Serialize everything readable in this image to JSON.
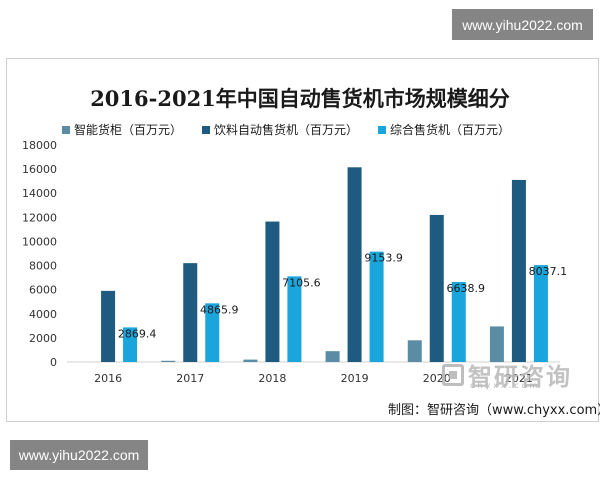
{
  "watermarks": {
    "top": "www.yihu2022.com",
    "bottom": "www.yihu2022.com"
  },
  "logo_watermark": {
    "name": "智研咨询",
    "url": "chyxx.com"
  },
  "source_note": "制图：智研咨询（www.chyxx.com）",
  "chart_data": {
    "type": "bar",
    "title": "2016-2021年中国自动售货机市场规模细分",
    "categories": [
      "2016",
      "2017",
      "2018",
      "2019",
      "2020",
      "2021"
    ],
    "series": [
      {
        "name": "智能货柜（百万元）",
        "color": "#5b8ca6",
        "values": [
          0,
          100,
          200,
          900,
          1800,
          2950
        ],
        "labels": []
      },
      {
        "name": "饮料自动售货机（百万元）",
        "color": "#1f5a80",
        "values": [
          5900,
          8200,
          11650,
          16150,
          12200,
          15100
        ],
        "labels": []
      },
      {
        "name": "综合售货机（百万元）",
        "color": "#1aa5dc",
        "values": [
          2869.4,
          4865.9,
          7105.6,
          9153.9,
          6638.9,
          8037.1
        ],
        "labels": [
          "2869.4",
          "4865.9",
          "7105.6",
          "9153.9",
          "6638.9",
          "8037.1"
        ]
      }
    ],
    "ylim": [
      0,
      18000
    ],
    "yticks": [
      0,
      2000,
      4000,
      6000,
      8000,
      10000,
      12000,
      14000,
      16000,
      18000
    ],
    "grid": false,
    "legend_position": "top"
  }
}
